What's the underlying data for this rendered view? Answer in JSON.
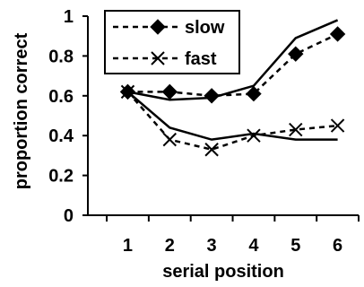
{
  "chart_data": {
    "type": "line",
    "title": "",
    "xlabel": "serial position",
    "ylabel": "proportion correct",
    "categories": [
      "1",
      "2",
      "3",
      "4",
      "5",
      "6"
    ],
    "x": [
      1,
      2,
      3,
      4,
      5,
      6
    ],
    "xlim": [
      0.05,
      6.5
    ],
    "ylim": [
      0,
      1
    ],
    "yticks": [
      "0",
      "0.2",
      "0.4",
      "0.6",
      "0.8",
      "1"
    ],
    "ytick_values": [
      0,
      0.2,
      0.4,
      0.6,
      0.8,
      1
    ],
    "grid": false,
    "legend_position": "top-left",
    "series": [
      {
        "name": "slow",
        "style": "dashed",
        "marker": "diamond",
        "values": [
          0.62,
          0.62,
          0.6,
          0.61,
          0.81,
          0.91
        ]
      },
      {
        "name": "fast",
        "style": "dashed",
        "marker": "x",
        "values": [
          0.62,
          0.38,
          0.33,
          0.4,
          0.43,
          0.45
        ]
      },
      {
        "style": "solid",
        "marker": "none",
        "values": [
          0.62,
          0.58,
          0.59,
          0.65,
          0.89,
          0.98
        ]
      },
      {
        "style": "solid",
        "marker": "none",
        "values": [
          0.62,
          0.44,
          0.38,
          0.41,
          0.38,
          0.38
        ]
      }
    ]
  }
}
